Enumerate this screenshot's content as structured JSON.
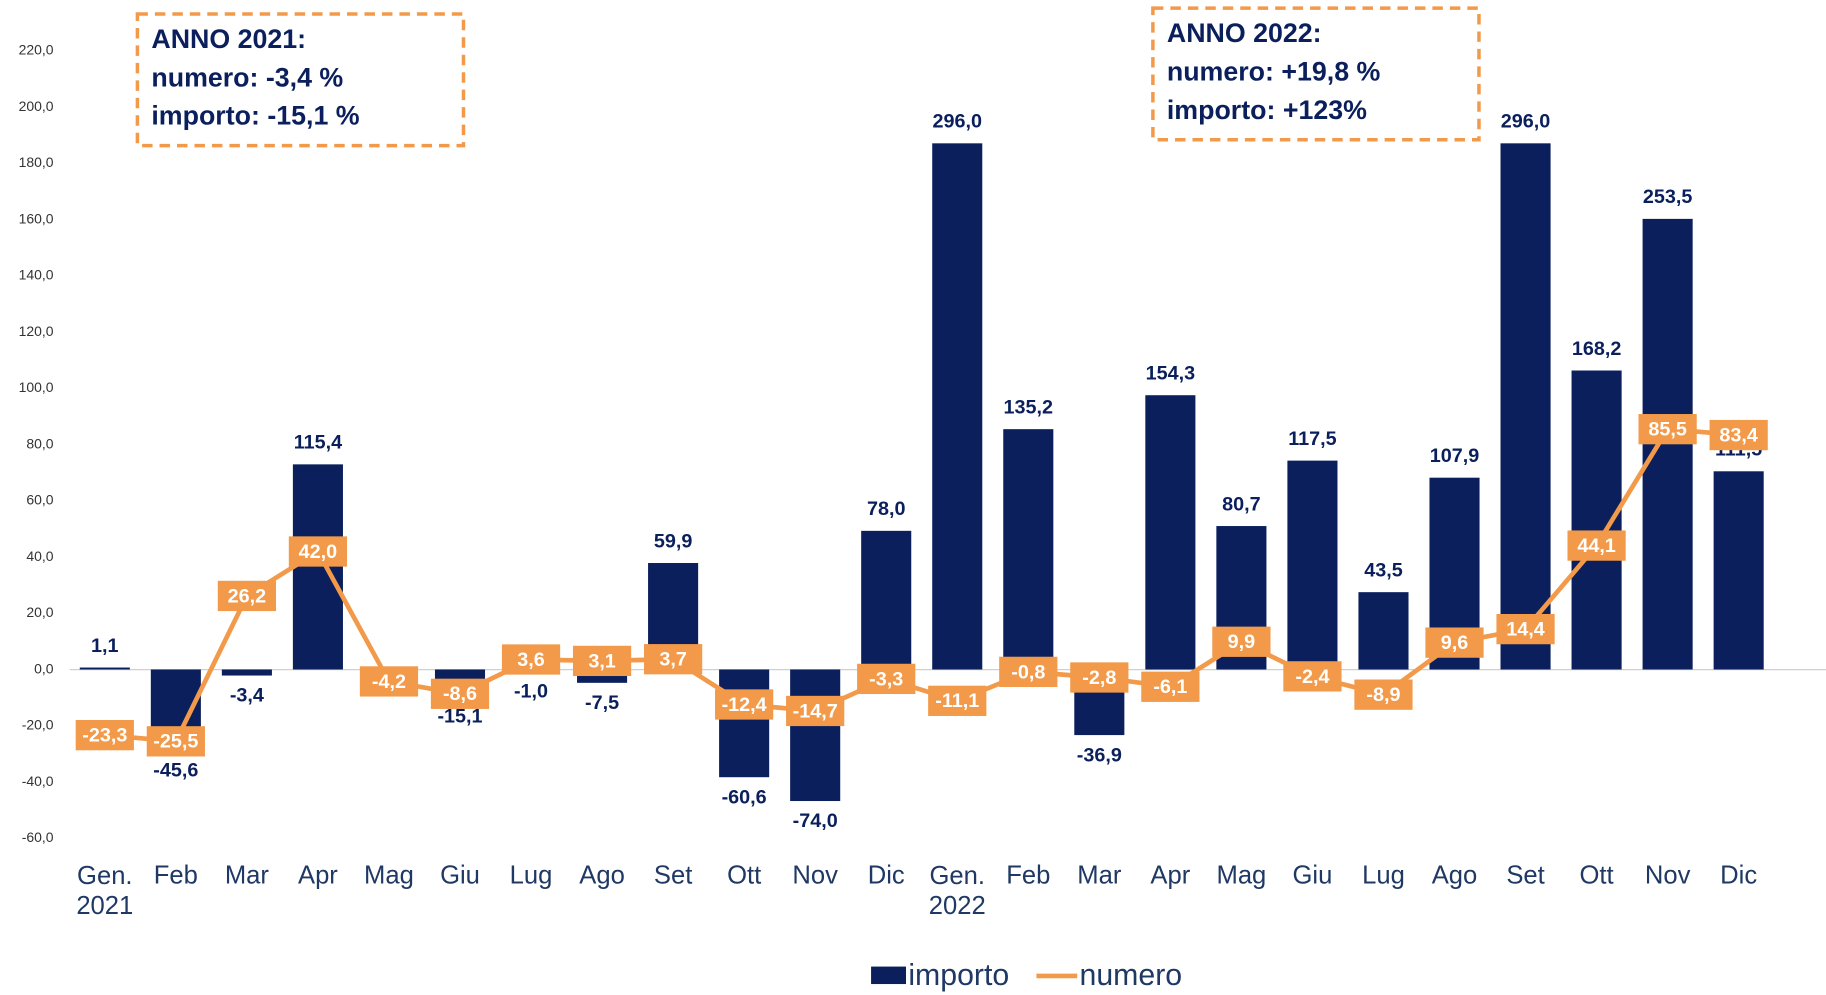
{
  "chart_data": {
    "type": "bar_line",
    "categories": [
      "Gen. 2021",
      "Feb",
      "Mar",
      "Apr",
      "Mag",
      "Giu",
      "Lug",
      "Ago",
      "Set",
      "Ott",
      "Nov",
      "Dic",
      "Gen. 2022",
      "Feb",
      "Mar",
      "Apr",
      "Mag",
      "Giu",
      "Lug",
      "Ago",
      "Set",
      "Ott",
      "Nov",
      "Dic"
    ],
    "series": [
      {
        "name": "importo",
        "type": "bar",
        "axis": "y2",
        "color": "#0a1f5c",
        "values": [
          1.1,
          -45.6,
          -3.4,
          115.4,
          0.5,
          -15.1,
          -1.0,
          -7.5,
          59.9,
          -60.6,
          -74.0,
          78.0,
          296.0,
          135.2,
          -36.9,
          154.3,
          80.7,
          117.5,
          43.5,
          107.9,
          296.0,
          168.2,
          253.5,
          111.5
        ],
        "value_labels": [
          "1,1",
          "-45,6",
          "-3,4",
          "115,4",
          null,
          "-15,1",
          "-1,0",
          "-7,5",
          "59,9",
          "-60,6",
          "-74,0",
          "78,0",
          "296,0",
          "135,2",
          "-36,9",
          "154,3",
          "80,7",
          "117,5",
          "43,5",
          "107,9",
          "296,0",
          "168,2",
          "253,5",
          "111,5"
        ]
      },
      {
        "name": "numero",
        "type": "line",
        "color": "#f29a4a",
        "values": [
          -23.3,
          -25.5,
          26.2,
          42.0,
          -4.2,
          -8.6,
          3.6,
          3.1,
          3.7,
          -12.4,
          -14.7,
          -3.3,
          -11.1,
          -0.8,
          -2.8,
          -6.1,
          9.9,
          -2.4,
          -8.9,
          9.6,
          14.4,
          44.1,
          85.5,
          83.4
        ],
        "value_labels": [
          "-23,3",
          "-25,5",
          "26,2",
          "42,0",
          "-4,2",
          "-8,6",
          "3,6",
          "3,1",
          "3,7",
          "-12,4",
          "-14,7",
          "-3,3",
          "-11,1",
          "-0,8",
          "-2,8",
          "-6,1",
          "9,9",
          "-2,4",
          "-8,9",
          "9,6",
          "14,4",
          "44,1",
          "85,5",
          "83,4"
        ]
      }
    ],
    "ylim": [
      -60,
      220
    ],
    "yticks": [
      {
        "value": -60,
        "label": "-60,0"
      },
      {
        "value": -40,
        "label": "-40,0"
      },
      {
        "value": -20,
        "label": "-20,0"
      },
      {
        "value": 0,
        "label": "0,0"
      },
      {
        "value": 20,
        "label": "20,0"
      },
      {
        "value": 40,
        "label": "40,0"
      },
      {
        "value": 60,
        "label": "60,0"
      },
      {
        "value": 80,
        "label": "80,0"
      },
      {
        "value": 100,
        "label": "100,0"
      },
      {
        "value": 120,
        "label": "120,0"
      },
      {
        "value": 140,
        "label": "140,0"
      },
      {
        "value": 160,
        "label": "160,0"
      },
      {
        "value": 180,
        "label": "180,0"
      },
      {
        "value": 200,
        "label": "200,0"
      },
      {
        "value": 220,
        "label": "220,0"
      }
    ],
    "y2lim": [
      -95,
      348
    ],
    "annotations": [
      {
        "lines": [
          "ANNO  2021:",
          "numero: -3,4 %",
          "importo: -15,1 %"
        ]
      },
      {
        "lines": [
          "ANNO  2022:",
          "numero: +19,8 %",
          "importo: +123%"
        ]
      }
    ],
    "legend": "bottom"
  }
}
